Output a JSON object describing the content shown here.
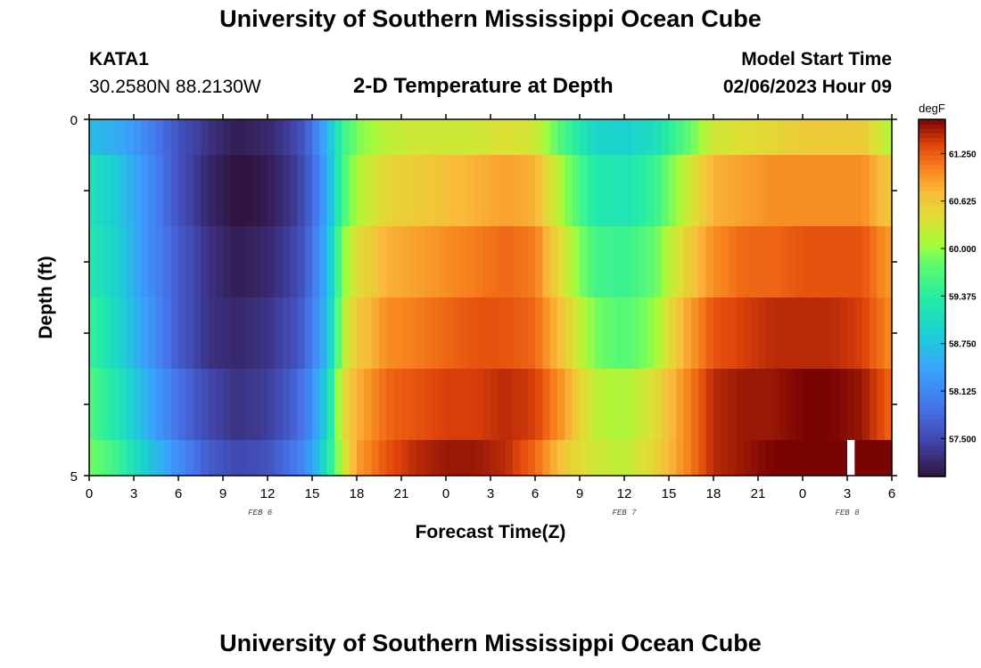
{
  "header": {
    "title": "University of Southern Mississippi Ocean Cube",
    "station_id": "KATA1",
    "coords": "30.2580N  88.2130W",
    "plot_title": "2-D Temperature at Depth",
    "start_label": "Model Start Time",
    "start_value": "02/06/2023 Hour 09"
  },
  "footer": {
    "title": "University of Southern Mississippi Ocean Cube"
  },
  "chart_data": {
    "type": "heatmap",
    "title": "2-D Temperature at Depth",
    "xlabel": "Forecast Time(Z)",
    "ylabel": "Depth (ft)",
    "x_hours": [
      0,
      54
    ],
    "ylim": [
      0,
      5
    ],
    "y_inverted": true,
    "x_tick_labels": [
      "0",
      "3",
      "6",
      "9",
      "12",
      "15",
      "18",
      "21",
      "0",
      "3",
      "6",
      "9",
      "12",
      "15",
      "18",
      "21",
      "0",
      "3",
      "6"
    ],
    "y_tick_labels": [
      "0",
      "5"
    ],
    "date_labels": [
      {
        "text": "FEB 6",
        "hour": 11.5
      },
      {
        "text": "FEB 7",
        "hour": 36
      },
      {
        "text": "FEB 8",
        "hour": 51
      }
    ],
    "colorbar": {
      "unit": "degF",
      "min": 57.0,
      "max": 61.7,
      "ticks": [
        "57.500",
        "58.125",
        "58.750",
        "59.375",
        "60.000",
        "60.625",
        "61.250"
      ]
    },
    "depth_levels": [
      "0-0.5",
      "0.5-1.5",
      "1.5-2.5",
      "2.5-3.5",
      "3.5-4.5",
      "4.5-5"
    ],
    "time_profile_hours": [
      0,
      2,
      4,
      6,
      8,
      10,
      12,
      14,
      15,
      16,
      17,
      18,
      20,
      22,
      24,
      26,
      28,
      30,
      32,
      34,
      36,
      38,
      40,
      42,
      44,
      46,
      48,
      50,
      52,
      54
    ],
    "time_profile_degF": [
      [
        58.7,
        58.5,
        58.1,
        57.6,
        57.3,
        57.1,
        57.2,
        57.5,
        57.9,
        58.6,
        59.5,
        59.9,
        60.2,
        60.3,
        60.3,
        60.3,
        60.4,
        60.3,
        59.6,
        59.0,
        58.9,
        59.1,
        59.7,
        60.3,
        60.4,
        60.5,
        60.6,
        60.6,
        60.6,
        60.1
      ],
      [
        59.2,
        58.8,
        58.2,
        57.6,
        57.2,
        57.0,
        57.1,
        57.4,
        57.8,
        58.5,
        59.6,
        60.1,
        60.5,
        60.6,
        60.7,
        60.8,
        60.9,
        60.8,
        60.0,
        59.3,
        59.2,
        59.5,
        60.2,
        60.8,
        60.9,
        61.0,
        61.0,
        61.0,
        61.0,
        60.6
      ],
      [
        59.3,
        58.9,
        58.2,
        57.7,
        57.3,
        57.1,
        57.2,
        57.5,
        57.9,
        58.6,
        59.9,
        60.4,
        60.8,
        60.9,
        61.0,
        61.1,
        61.2,
        61.1,
        60.3,
        59.6,
        59.5,
        59.8,
        60.5,
        61.0,
        61.2,
        61.2,
        61.3,
        61.3,
        61.3,
        60.9
      ],
      [
        59.5,
        59.0,
        58.3,
        57.7,
        57.3,
        57.2,
        57.3,
        57.6,
        58.0,
        58.7,
        60.1,
        60.6,
        61.0,
        61.1,
        61.2,
        61.3,
        61.3,
        61.2,
        60.6,
        59.9,
        59.7,
        60.0,
        60.8,
        61.3,
        61.4,
        61.5,
        61.5,
        61.5,
        61.4,
        61.0
      ],
      [
        59.7,
        59.2,
        58.5,
        57.9,
        57.5,
        57.3,
        57.4,
        57.8,
        58.2,
        59.0,
        60.4,
        60.8,
        61.2,
        61.3,
        61.4,
        61.4,
        61.5,
        61.4,
        60.9,
        60.2,
        60.1,
        60.4,
        61.0,
        61.5,
        61.6,
        61.6,
        61.7,
        61.7,
        61.6,
        61.2
      ],
      [
        59.9,
        59.5,
        58.8,
        58.2,
        57.7,
        57.5,
        57.6,
        58.0,
        58.4,
        59.2,
        60.2,
        60.9,
        61.3,
        61.5,
        61.6,
        61.6,
        61.5,
        61.2,
        60.6,
        60.3,
        60.2,
        60.5,
        61.0,
        61.5,
        61.6,
        61.7,
        61.8,
        62.0,
        62.2,
        61.8
      ]
    ],
    "missing_cells": [
      {
        "depth_index": 5,
        "hour": 51.3
      }
    ]
  }
}
